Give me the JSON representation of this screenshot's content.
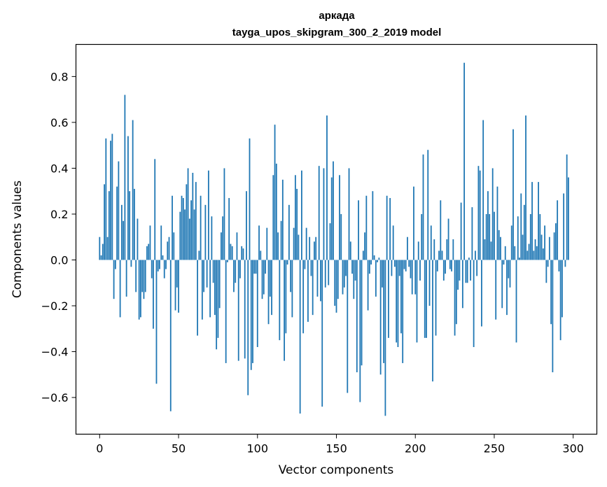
{
  "chart_data": {
    "type": "bar",
    "title": "аркада",
    "subtitle": "tayga_upos_skipgram_300_2_2019 model",
    "xlabel": "Vector components",
    "ylabel": "Components values",
    "xlim": [
      -15,
      315
    ],
    "ylim": [
      -0.76,
      0.94
    ],
    "x_ticks": [
      0,
      50,
      100,
      150,
      200,
      250,
      300
    ],
    "y_ticks": [
      -0.6,
      -0.4,
      -0.2,
      0.0,
      0.2,
      0.4,
      0.6,
      0.8
    ],
    "x_tick_labels": [
      "0",
      "50",
      "100",
      "150",
      "200",
      "250",
      "300"
    ],
    "y_tick_labels": [
      "−0.6",
      "−0.4",
      "−0.2",
      "0.0",
      "0.2",
      "0.4",
      "0.6",
      "0.8"
    ],
    "bar_color": "#1f77b4",
    "grid": false,
    "values": [
      0.1,
      0.02,
      0.07,
      0.33,
      0.53,
      0.1,
      0.3,
      0.52,
      0.55,
      -0.17,
      -0.04,
      0.32,
      0.43,
      -0.25,
      0.24,
      0.17,
      0.72,
      -0.16,
      0.54,
      0.3,
      -0.03,
      0.61,
      0.31,
      -0.14,
      0.18,
      -0.26,
      -0.25,
      -0.14,
      -0.17,
      -0.14,
      0.06,
      0.07,
      0.15,
      -0.08,
      -0.3,
      0.44,
      -0.54,
      -0.05,
      -0.04,
      0.15,
      0.02,
      -0.08,
      -0.04,
      0.08,
      0.1,
      -0.66,
      0.28,
      0.12,
      -0.22,
      -0.12,
      -0.23,
      0.21,
      0.28,
      0.27,
      0.22,
      0.33,
      0.4,
      0.18,
      0.26,
      0.38,
      0.22,
      0.34,
      -0.33,
      0.04,
      0.28,
      -0.26,
      -0.14,
      0.24,
      -0.12,
      0.39,
      -0.25,
      0.19,
      -0.1,
      -0.24,
      -0.39,
      -0.34,
      -0.21,
      0.12,
      0.19,
      0.4,
      -0.45,
      -0.01,
      0.27,
      0.07,
      0.06,
      -0.14,
      -0.1,
      0.12,
      -0.44,
      -0.08,
      0.06,
      0.05,
      -0.43,
      0.3,
      -0.59,
      0.53,
      -0.48,
      -0.45,
      -0.06,
      -0.06,
      -0.38,
      0.15,
      0.04,
      -0.17,
      -0.15,
      -0.06,
      0.14,
      -0.28,
      -0.16,
      -0.24,
      0.37,
      0.59,
      0.42,
      0.12,
      -0.35,
      0.17,
      0.35,
      -0.44,
      -0.32,
      -0.02,
      0.24,
      -0.14,
      -0.25,
      0.14,
      0.37,
      0.31,
      0.11,
      -0.67,
      0.39,
      -0.32,
      -0.04,
      0.14,
      -0.27,
      0.1,
      -0.07,
      -0.24,
      0.08,
      0.1,
      -0.16,
      0.41,
      -0.18,
      -0.64,
      0.4,
      -0.12,
      0.63,
      -0.11,
      0.16,
      0.36,
      0.43,
      -0.2,
      -0.23,
      -0.17,
      0.37,
      0.2,
      -0.15,
      -0.12,
      -0.07,
      -0.58,
      0.4,
      0.08,
      -0.06,
      -0.17,
      -0.09,
      -0.49,
      0.26,
      -0.62,
      -0.46,
      0.04,
      0.12,
      0.28,
      -0.22,
      -0.06,
      -0.02,
      0.3,
      0.02,
      -0.16,
      -0.01,
      0.01,
      -0.5,
      -0.12,
      -0.45,
      -0.68,
      0.28,
      -0.34,
      0.27,
      -0.07,
      0.15,
      -0.03,
      -0.36,
      -0.38,
      -0.07,
      -0.32,
      -0.45,
      -0.04,
      -0.05,
      0.1,
      -0.03,
      -0.08,
      -0.15,
      0.32,
      -0.15,
      -0.36,
      0.08,
      -0.09,
      0.2,
      0.46,
      -0.34,
      -0.34,
      0.48,
      -0.2,
      0.15,
      -0.53,
      0.09,
      -0.33,
      -0.05,
      0.04,
      0.26,
      0.04,
      -0.09,
      -0.06,
      0.09,
      0.18,
      -0.04,
      -0.05,
      0.09,
      -0.33,
      -0.28,
      -0.13,
      -0.09,
      0.25,
      -0.21,
      0.86,
      -0.1,
      -0.1,
      0.01,
      -0.09,
      0.23,
      -0.38,
      0.04,
      -0.07,
      0.41,
      0.39,
      -0.29,
      0.61,
      0.09,
      0.2,
      0.3,
      0.2,
      0.08,
      0.4,
      0.21,
      -0.26,
      0.32,
      0.13,
      0.1,
      -0.21,
      -0.02,
      0.06,
      -0.24,
      -0.08,
      -0.12,
      0.15,
      0.57,
      0.06,
      -0.36,
      0.19,
      0.01,
      0.29,
      0.11,
      0.24,
      0.63,
      0.04,
      0.07,
      0.2,
      0.34,
      0.04,
      0.09,
      0.06,
      0.34,
      0.2,
      0.11,
      0.05,
      0.15,
      -0.1,
      -0.03,
      0.1,
      -0.28,
      -0.49,
      0.12,
      0.16,
      0.26,
      -0.05,
      -0.35,
      -0.25,
      0.29,
      -0.03,
      0.46,
      0.36
    ]
  }
}
